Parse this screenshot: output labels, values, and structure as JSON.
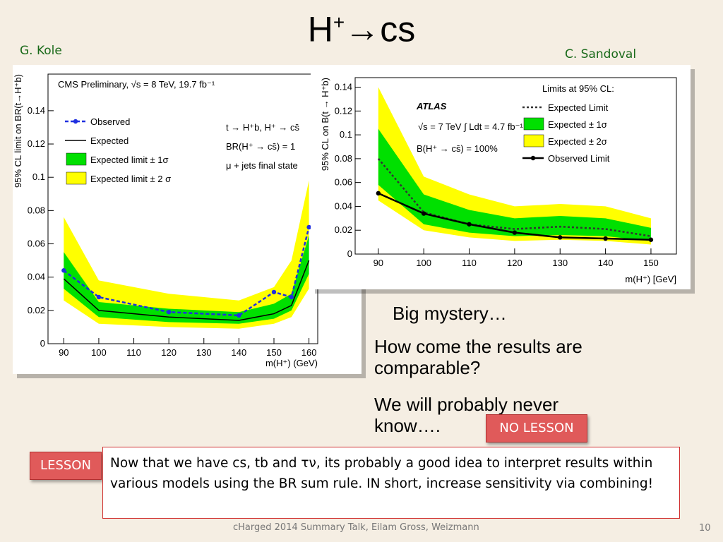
{
  "slide": {
    "title_base": "H",
    "title_sup": "+",
    "title_arrow": "→",
    "title_rest": "cs",
    "author_left": "G. Kole",
    "author_right": "C. Sandoval",
    "bullets": [
      "Big mystery…",
      "How come the results are comparable?",
      "We will probably never know…."
    ],
    "no_lesson": "NO LESSON",
    "lesson": "LESSON",
    "lesson_text": "Now that we have cs, tb and τν, its probably a good idea to interpret results within various models using the BR sum rule. IN short, increase sensitivity via combining!",
    "footer": "cHarged 2014 Summary Talk, Eilam Gross, Weizmann",
    "page_number": "10"
  },
  "chart_data": [
    {
      "type": "line",
      "title": "CMS Preliminary, √s = 8 TeV,  19.7 fb⁻¹",
      "x_label": "m(H⁺) (GeV)",
      "y_label": "95% CL limit on BR(t→H⁺b)",
      "annotations": [
        "t → H⁺b, H⁺ → cs̄",
        "BR(H⁺ → cs̄) = 1",
        "μ + jets final state"
      ],
      "x": [
        90,
        100,
        120,
        140,
        150,
        155,
        160
      ],
      "xlim": [
        85.5,
        162.5
      ],
      "xticks": [
        90,
        100,
        110,
        120,
        130,
        140,
        150,
        160
      ],
      "ylim": [
        0,
        0.162
      ],
      "yticks": [
        0,
        0.02,
        0.04,
        0.06,
        0.08,
        0.1,
        0.12,
        0.14
      ],
      "series": [
        {
          "name": "Observed",
          "kind": "dashed-markers",
          "color": "#1f2fe0",
          "values": [
            0.044,
            0.028,
            0.019,
            0.017,
            0.031,
            0.028,
            0.07
          ]
        },
        {
          "name": "Expected",
          "kind": "line",
          "color": "#000000",
          "values": [
            0.039,
            0.02,
            0.016,
            0.014,
            0.018,
            0.023,
            0.05
          ]
        },
        {
          "name": "Expected limit ± 1σ",
          "kind": "band",
          "color": "#00e000",
          "low": [
            0.033,
            0.016,
            0.013,
            0.012,
            0.015,
            0.02,
            0.042
          ],
          "high": [
            0.055,
            0.025,
            0.021,
            0.019,
            0.024,
            0.03,
            0.065
          ]
        },
        {
          "name": "Expected limit ± 2 σ",
          "kind": "band",
          "color": "#ffff00",
          "low": [
            0.026,
            0.012,
            0.01,
            0.009,
            0.012,
            0.016,
            0.033
          ],
          "high": [
            0.076,
            0.038,
            0.03,
            0.026,
            0.034,
            0.05,
            0.098
          ]
        }
      ]
    },
    {
      "type": "line",
      "title": "ATLAS",
      "x_label": "m(H⁺) [GeV]",
      "y_label": "95% CL on B(t → H⁺b)",
      "legend_title": "Limits at 95% CL:",
      "annotations": [
        "√s = 7 TeV   ∫ Ldt = 4.7 fb⁻¹",
        "B(H⁺ → cs̄) = 100%"
      ],
      "x": [
        90,
        100,
        110,
        120,
        130,
        140,
        150
      ],
      "xlim": [
        84.9,
        155.6
      ],
      "xticks": [
        90,
        100,
        110,
        120,
        130,
        140,
        150
      ],
      "ylim": [
        0,
        0.148
      ],
      "yticks": [
        0,
        0.02,
        0.04,
        0.06,
        0.08,
        0.1,
        0.12,
        0.14
      ],
      "series": [
        {
          "name": "Expected Limit",
          "kind": "dotted",
          "color": "#333333",
          "values": [
            0.08,
            0.035,
            0.025,
            0.021,
            0.023,
            0.021,
            0.015
          ]
        },
        {
          "name": "Expected ± 1σ",
          "kind": "band",
          "color": "#00e000",
          "low": [
            0.058,
            0.025,
            0.018,
            0.015,
            0.016,
            0.015,
            0.011
          ],
          "high": [
            0.105,
            0.05,
            0.037,
            0.03,
            0.032,
            0.03,
            0.022
          ]
        },
        {
          "name": "Expected ± 2σ",
          "kind": "band",
          "color": "#ffff00",
          "low": [
            0.045,
            0.02,
            0.014,
            0.011,
            0.012,
            0.011,
            0.008
          ],
          "high": [
            0.14,
            0.065,
            0.05,
            0.04,
            0.042,
            0.04,
            0.03
          ]
        },
        {
          "name": "Observed Limit",
          "kind": "line-markers",
          "color": "#000000",
          "values": [
            0.051,
            0.034,
            0.025,
            0.018,
            0.014,
            0.013,
            0.012
          ]
        }
      ]
    }
  ]
}
